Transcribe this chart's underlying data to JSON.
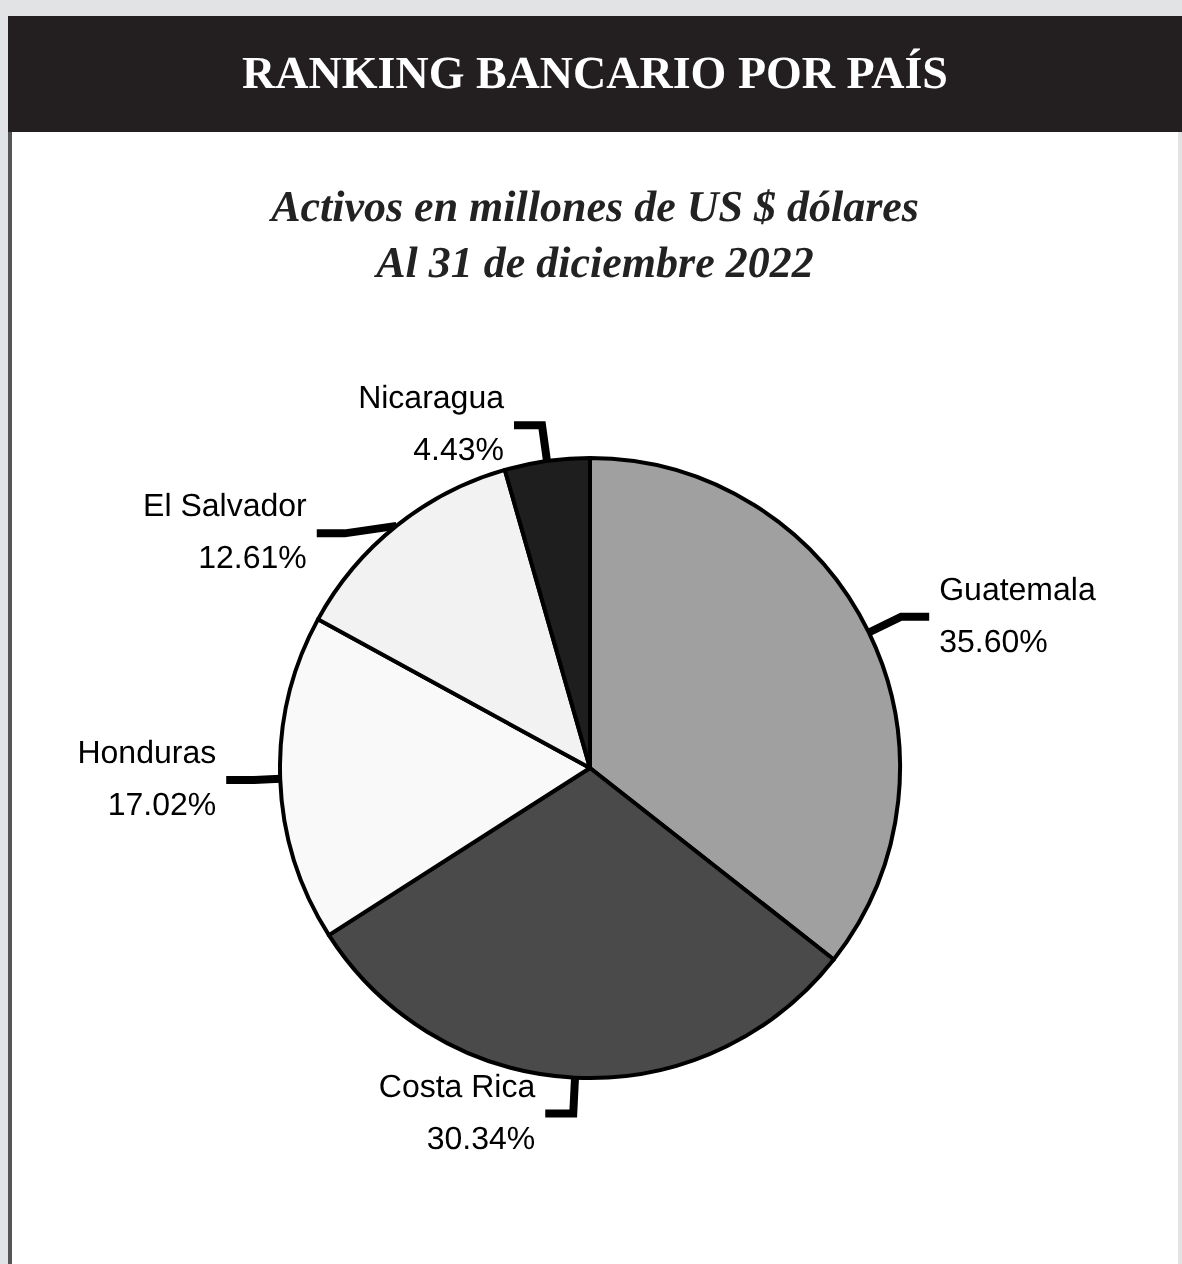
{
  "chart_data": {
    "type": "pie",
    "title": "RANKING BANCARIO POR PAÍS",
    "subtitle": "Activos en millones de US $ dólares\nAl 31 de diciembre 2022",
    "categories": [
      "Guatemala",
      "Costa Rica",
      "Honduras",
      "El Salvador",
      "Nicaragua"
    ],
    "values": [
      35.6,
      30.34,
      17.02,
      12.61,
      4.43
    ],
    "value_labels": [
      "35.60%",
      "30.34%",
      "17.02%",
      "12.61%",
      "4.43%"
    ],
    "colors": [
      "#a0a0a0",
      "#4a4a4a",
      "#f9f9f9",
      "#f2f2f2",
      "#1e1e1e"
    ],
    "legend": false
  }
}
